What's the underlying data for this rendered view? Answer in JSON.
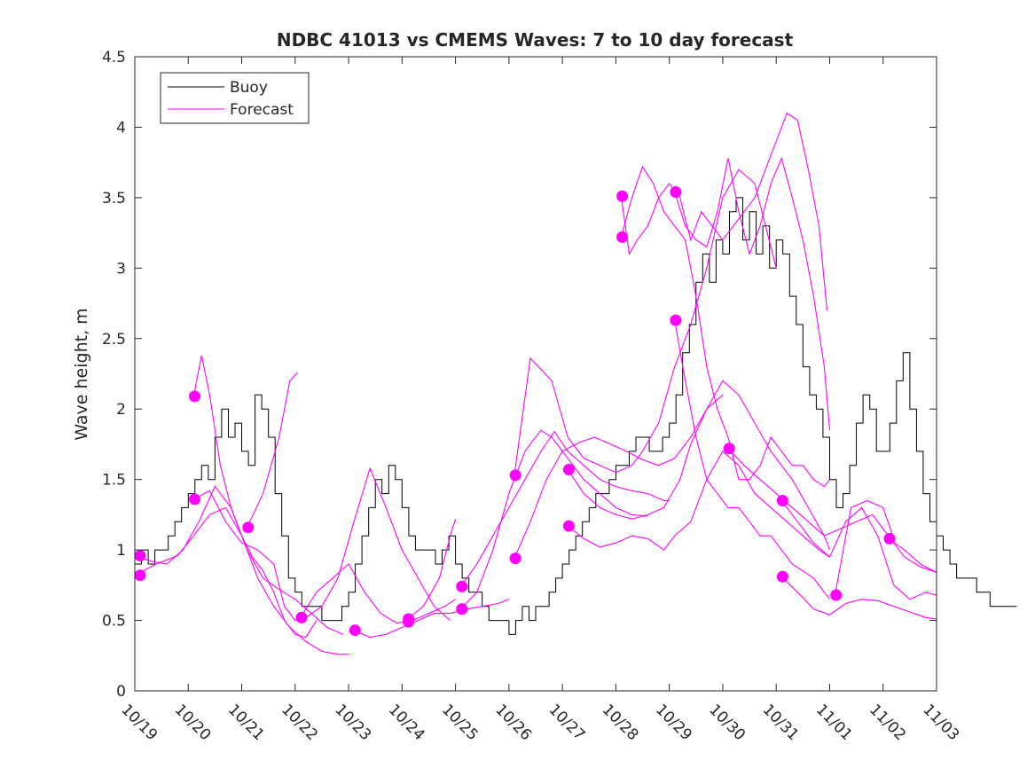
{
  "chart_data": {
    "type": "line",
    "title": "NDBC 41013 vs CMEMS Waves: 7 to 10 day forecast",
    "xlabel": "",
    "ylabel": "Wave height, m",
    "xlim": [
      0,
      15
    ],
    "ylim": [
      0,
      4.5
    ],
    "yticks": [
      0,
      0.5,
      1,
      1.5,
      2,
      2.5,
      3,
      3.5,
      4,
      4.5
    ],
    "ytick_labels": [
      "0",
      "0.5",
      "1",
      "1.5",
      "2",
      "2.5",
      "3",
      "3.5",
      "4",
      "4.5"
    ],
    "xtick_labels": [
      "10/19",
      "10/20",
      "10/21",
      "10/22",
      "10/23",
      "10/24",
      "10/25",
      "10/26",
      "10/27",
      "10/28",
      "10/29",
      "10/30",
      "10/31",
      "11/01",
      "11/02",
      "11/03"
    ],
    "legend": {
      "position": "top-left",
      "entries": [
        "Buoy",
        "Forecast"
      ]
    },
    "colors": {
      "buoy": "#000000",
      "forecast": "#ff00ff",
      "axis": "#262626"
    },
    "buoy": {
      "name": "Buoy",
      "step_hours": 3,
      "values": [
        0.9,
        1.0,
        0.9,
        1.0,
        1.0,
        1.1,
        1.2,
        1.3,
        1.4,
        1.5,
        1.6,
        1.5,
        1.8,
        2.0,
        1.8,
        1.9,
        1.7,
        1.6,
        2.1,
        2.0,
        1.8,
        1.4,
        1.1,
        0.8,
        0.7,
        0.6,
        0.6,
        0.6,
        0.5,
        0.5,
        0.5,
        0.6,
        0.7,
        0.9,
        1.1,
        1.3,
        1.5,
        1.4,
        1.6,
        1.5,
        1.3,
        1.1,
        1.0,
        1.0,
        1.0,
        0.9,
        1.0,
        1.1,
        0.9,
        0.8,
        0.7,
        0.7,
        0.6,
        0.5,
        0.5,
        0.5,
        0.4,
        0.5,
        0.6,
        0.5,
        0.6,
        0.6,
        0.7,
        0.8,
        0.9,
        1.0,
        1.1,
        1.2,
        1.3,
        1.4,
        1.4,
        1.5,
        1.6,
        1.6,
        1.7,
        1.8,
        1.8,
        1.7,
        1.7,
        1.8,
        1.9,
        2.1,
        2.4,
        2.6,
        2.9,
        3.1,
        2.9,
        3.2,
        3.1,
        3.4,
        3.5,
        3.2,
        3.4,
        3.1,
        3.3,
        3.0,
        3.2,
        3.1,
        2.8,
        2.6,
        2.3,
        2.1,
        2.0,
        1.8,
        1.5,
        1.3,
        1.4,
        1.6,
        1.9,
        2.1,
        2.0,
        1.7,
        1.7,
        1.9,
        2.2,
        2.4,
        2.0,
        1.7,
        1.4,
        1.2,
        1.1,
        1.0,
        0.9,
        0.8,
        0.8,
        0.8,
        0.7,
        0.7,
        0.6,
        0.6,
        0.6,
        0.6
      ]
    },
    "forecast_series": [
      {
        "x": [
          0.0,
          0.3,
          0.6,
          0.9,
          1.2,
          1.5,
          1.8,
          2.1,
          2.4,
          2.7,
          3.0,
          3.3,
          3.6,
          3.9
        ],
        "y": [
          0.96,
          0.92,
          0.9,
          1.0,
          1.2,
          1.45,
          1.3,
          1.0,
          0.8,
          0.72,
          0.65,
          0.55,
          0.45,
          0.4
        ]
      },
      {
        "x": [
          0.0,
          0.4,
          0.8,
          1.1,
          1.4,
          1.7,
          2.0,
          2.3,
          2.6,
          2.9,
          3.2,
          3.5,
          3.8,
          4.0
        ],
        "y": [
          0.82,
          0.9,
          0.96,
          1.1,
          1.25,
          1.3,
          1.1,
          0.8,
          0.6,
          0.45,
          0.35,
          0.28,
          0.26,
          0.26
        ]
      },
      {
        "x": [
          1.1,
          1.25,
          1.4,
          1.6,
          1.8,
          2.0,
          2.2,
          2.4,
          2.6,
          2.8,
          3.0,
          3.2,
          3.4
        ],
        "y": [
          2.09,
          2.38,
          2.1,
          1.6,
          1.3,
          1.1,
          0.95,
          0.85,
          0.7,
          0.5,
          0.4,
          0.38,
          0.5
        ]
      },
      {
        "x": [
          1.1,
          1.4,
          1.7,
          2.0,
          2.3,
          2.6,
          2.8,
          3.0,
          3.2,
          3.5,
          3.8,
          4.1,
          4.4,
          4.7,
          5.0,
          5.3,
          5.6,
          5.9
        ],
        "y": [
          1.36,
          1.42,
          1.2,
          1.05,
          1.0,
          0.9,
          0.6,
          0.5,
          0.52,
          0.6,
          0.8,
          1.2,
          1.58,
          1.3,
          1.0,
          0.8,
          0.6,
          0.5
        ]
      },
      {
        "x": [
          2.1,
          2.4,
          2.7,
          2.9,
          3.05
        ],
        "y": [
          1.16,
          1.4,
          1.8,
          2.2,
          2.26
        ]
      },
      {
        "x": [
          3.1,
          3.4,
          3.7,
          4.0,
          4.3,
          4.6,
          4.9,
          5.2,
          5.5,
          5.8,
          6.0
        ],
        "y": [
          0.52,
          0.7,
          0.8,
          0.9,
          0.7,
          0.55,
          0.48,
          0.5,
          0.55,
          0.6,
          0.65
        ]
      },
      {
        "x": [
          4.1,
          4.4,
          4.7,
          5.0,
          5.3,
          5.6,
          5.9,
          6.2,
          6.5,
          6.8,
          7.0
        ],
        "y": [
          0.43,
          0.38,
          0.4,
          0.45,
          0.5,
          0.55,
          0.55,
          0.58,
          0.6,
          0.62,
          0.65
        ]
      },
      {
        "x": [
          5.1,
          5.4,
          5.7,
          5.9,
          6.0
        ],
        "y": [
          0.51,
          0.6,
          0.8,
          1.1,
          1.22
        ]
      },
      {
        "x": [
          6.1,
          6.4,
          6.7,
          7.0,
          7.3,
          7.6,
          7.85,
          8.1,
          8.4,
          8.7,
          9.0,
          9.3,
          9.6,
          9.9,
          10.0
        ],
        "y": [
          0.74,
          0.9,
          1.1,
          1.3,
          1.5,
          1.7,
          1.84,
          1.7,
          1.6,
          1.5,
          1.45,
          1.42,
          1.4,
          1.35,
          1.35
        ]
      },
      {
        "x": [
          6.1,
          6.4,
          6.7,
          7.0,
          7.3,
          7.6,
          7.8,
          8.1,
          8.4,
          8.7,
          9.0,
          9.3,
          9.6
        ],
        "y": [
          0.58,
          0.7,
          1.0,
          1.4,
          1.7,
          1.85,
          1.8,
          1.65,
          1.5,
          1.4,
          1.3,
          1.25,
          1.24
        ]
      },
      {
        "x": [
          7.1,
          7.4,
          7.8,
          8.1,
          8.4,
          8.7,
          9.0,
          9.3,
          9.5,
          9.8,
          10.1,
          10.4,
          10.7,
          11.0,
          11.3,
          11.6,
          12.0
        ],
        "y": [
          1.53,
          2.36,
          2.2,
          1.8,
          1.65,
          1.6,
          1.55,
          1.6,
          1.7,
          1.9,
          2.3,
          2.6,
          3.0,
          3.5,
          3.7,
          3.6,
          3.0
        ]
      },
      {
        "x": [
          7.1,
          7.4,
          7.7,
          8.0,
          8.3,
          8.6,
          8.9,
          9.2,
          9.5,
          9.8,
          10.1,
          10.4,
          10.7,
          11.0
        ],
        "y": [
          0.94,
          1.2,
          1.5,
          1.7,
          1.76,
          1.8,
          1.75,
          1.7,
          1.64,
          1.6,
          1.65,
          1.8,
          2.0,
          2.1
        ]
      },
      {
        "x": [
          8.1,
          8.4,
          8.7,
          9.0,
          9.3,
          9.6,
          9.9,
          10.2,
          10.4,
          10.7,
          11.0,
          11.3,
          11.6,
          11.9,
          12.1,
          12.3,
          12.6,
          12.9,
          13.0
        ],
        "y": [
          1.57,
          1.4,
          1.3,
          1.25,
          1.22,
          1.25,
          1.3,
          1.5,
          1.75,
          2.0,
          2.2,
          2.1,
          1.9,
          1.7,
          1.6,
          1.5,
          1.3,
          1.1,
          1.0
        ]
      },
      {
        "x": [
          8.1,
          8.4,
          8.7,
          9.0,
          9.3,
          9.6,
          9.9,
          10.1,
          10.4,
          10.7,
          11.0,
          11.3,
          11.6,
          11.9,
          12.2,
          12.5,
          12.8,
          13.0
        ],
        "y": [
          1.17,
          1.08,
          1.02,
          1.05,
          1.1,
          1.08,
          1.0,
          1.1,
          1.2,
          1.5,
          1.7,
          1.6,
          1.4,
          1.3,
          1.2,
          1.1,
          1.0,
          0.95
        ]
      },
      {
        "x": [
          9.1,
          9.25,
          9.4,
          9.6,
          9.8,
          10.0,
          10.2,
          10.4,
          10.6,
          10.8,
          11.0,
          11.2,
          11.4,
          11.6,
          11.8,
          12.0,
          12.2,
          12.4,
          12.6,
          12.8,
          12.95
        ],
        "y": [
          3.51,
          3.1,
          3.2,
          3.3,
          3.5,
          3.6,
          3.5,
          3.2,
          3.4,
          3.3,
          3.2,
          3.3,
          3.4,
          3.5,
          3.7,
          3.9,
          4.1,
          4.05,
          3.7,
          3.3,
          2.7
        ]
      },
      {
        "x": [
          9.1,
          9.3,
          9.5,
          9.7,
          9.9,
          10.1,
          10.3,
          10.5,
          10.7,
          10.9,
          11.1,
          11.3,
          11.5,
          11.7,
          11.9,
          12.1,
          12.3,
          12.5,
          12.7,
          12.9,
          13.0
        ],
        "y": [
          3.22,
          3.5,
          3.72,
          3.6,
          3.4,
          3.3,
          3.2,
          2.8,
          2.3,
          2.0,
          1.8,
          1.5,
          1.5,
          1.6,
          1.8,
          1.7,
          1.6,
          1.6,
          1.5,
          1.45,
          1.5
        ]
      },
      {
        "x": [
          10.1,
          10.3,
          10.5,
          10.7,
          10.9,
          11.1,
          11.3,
          11.5,
          11.7,
          11.9,
          12.1,
          12.3,
          12.5,
          12.7,
          12.9,
          13.0
        ],
        "y": [
          3.54,
          3.3,
          3.2,
          3.15,
          3.4,
          3.78,
          3.4,
          3.1,
          3.3,
          3.6,
          3.78,
          3.5,
          3.2,
          2.8,
          2.3,
          1.85
        ]
      },
      {
        "x": [
          10.1,
          10.3,
          10.5,
          10.7,
          10.9,
          11.1,
          11.3,
          11.5,
          11.7,
          11.9,
          12.1,
          12.3,
          12.5,
          12.7,
          12.9,
          13.0
        ],
        "y": [
          2.63,
          2.2,
          1.8,
          1.5,
          1.4,
          1.3,
          1.3,
          1.2,
          1.1,
          1.1,
          1.0,
          0.9,
          0.85,
          0.8,
          0.7,
          0.65
        ]
      },
      {
        "x": [
          11.1,
          11.4,
          11.7,
          12.0,
          12.3,
          12.6,
          12.9,
          13.2,
          13.5,
          13.8,
          14.1,
          14.4,
          14.7,
          15.0
        ],
        "y": [
          1.72,
          1.6,
          1.5,
          1.4,
          1.3,
          1.2,
          1.1,
          1.15,
          1.2,
          1.25,
          1.1,
          0.95,
          0.88,
          0.84
        ]
      },
      {
        "x": [
          12.1,
          12.4,
          12.7,
          13.0,
          13.3,
          13.6,
          13.9,
          14.2,
          14.5,
          14.8,
          15.0
        ],
        "y": [
          1.35,
          1.2,
          1.05,
          0.95,
          1.2,
          1.3,
          1.1,
          0.75,
          0.65,
          0.7,
          0.68
        ]
      },
      {
        "x": [
          12.1,
          12.4,
          12.7,
          13.0,
          13.3,
          13.6,
          13.9,
          14.2,
          14.5,
          14.8,
          15.0
        ],
        "y": [
          0.81,
          0.7,
          0.58,
          0.54,
          0.62,
          0.65,
          0.64,
          0.6,
          0.56,
          0.52,
          0.51
        ]
      },
      {
        "x": [
          13.1,
          13.4,
          13.7,
          14.0,
          14.2
        ],
        "y": [
          0.68,
          1.3,
          1.35,
          1.3,
          1.08
        ]
      },
      {
        "x": [
          14.1,
          14.4,
          14.7,
          15.0
        ],
        "y": [
          1.08,
          1.0,
          0.9,
          0.84
        ]
      }
    ],
    "forecast_markers": [
      {
        "x": 0.1,
        "y": 0.96
      },
      {
        "x": 0.1,
        "y": 0.82
      },
      {
        "x": 1.12,
        "y": 2.09
      },
      {
        "x": 1.12,
        "y": 1.36
      },
      {
        "x": 2.12,
        "y": 1.16
      },
      {
        "x": 3.12,
        "y": 0.52
      },
      {
        "x": 4.12,
        "y": 0.43
      },
      {
        "x": 5.12,
        "y": 0.51
      },
      {
        "x": 5.12,
        "y": 0.49
      },
      {
        "x": 6.12,
        "y": 0.74
      },
      {
        "x": 6.12,
        "y": 0.58
      },
      {
        "x": 7.12,
        "y": 1.53
      },
      {
        "x": 7.12,
        "y": 0.94
      },
      {
        "x": 8.12,
        "y": 1.57
      },
      {
        "x": 8.12,
        "y": 1.17
      },
      {
        "x": 9.12,
        "y": 3.51
      },
      {
        "x": 9.12,
        "y": 3.22
      },
      {
        "x": 10.12,
        "y": 3.54
      },
      {
        "x": 10.12,
        "y": 2.63
      },
      {
        "x": 11.12,
        "y": 1.72
      },
      {
        "x": 12.12,
        "y": 1.35
      },
      {
        "x": 12.12,
        "y": 0.81
      },
      {
        "x": 13.12,
        "y": 0.68
      },
      {
        "x": 14.12,
        "y": 1.08
      }
    ]
  }
}
